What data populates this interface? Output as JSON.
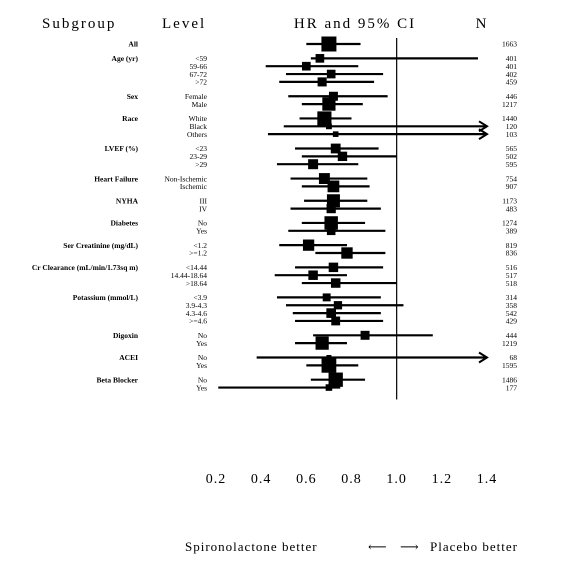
{
  "headers": {
    "subgroup": "Subgroup",
    "level": "Level",
    "estimate": "HR and 95% CI",
    "n": "N"
  },
  "footer": {
    "left": "Spironolactone better",
    "left_arrow": "⟵",
    "right_arrow": "⟶",
    "right": "Placebo better"
  },
  "chart_data": {
    "type": "forest",
    "xlim": [
      0.2,
      1.4
    ],
    "x_ticks": [
      "0.2",
      "0.4",
      "0.6",
      "0.8",
      "1.0",
      "1.2",
      "1.4"
    ],
    "reference_line": 1.0,
    "groups": [
      {
        "label": "All",
        "rows": [
          {
            "level": "",
            "hr": 0.7,
            "lo": 0.6,
            "hi": 0.84,
            "n": "1663",
            "weight": 1663
          }
        ]
      },
      {
        "label": "Age (yr)",
        "rows": [
          {
            "level": "<59",
            "hr": 0.66,
            "lo": 0.62,
            "hi": 1.36,
            "n": "401",
            "weight": 401
          },
          {
            "level": "59-66",
            "hr": 0.6,
            "lo": 0.42,
            "hi": 0.83,
            "n": "401",
            "weight": 401
          },
          {
            "level": "67-72",
            "hr": 0.71,
            "lo": 0.51,
            "hi": 0.94,
            "n": "402",
            "weight": 402
          },
          {
            "level": ">72",
            "hr": 0.67,
            "lo": 0.48,
            "hi": 0.9,
            "n": "459",
            "weight": 459
          }
        ]
      },
      {
        "label": "Sex",
        "rows": [
          {
            "level": "Female",
            "hr": 0.72,
            "lo": 0.52,
            "hi": 0.96,
            "n": "446",
            "weight": 446
          },
          {
            "level": "Male",
            "hr": 0.7,
            "lo": 0.58,
            "hi": 0.85,
            "n": "1217",
            "weight": 1217
          }
        ]
      },
      {
        "label": "Race",
        "rows": [
          {
            "level": "White",
            "hr": 0.68,
            "lo": 0.57,
            "hi": 0.8,
            "n": "1440",
            "weight": 1440
          },
          {
            "level": "Black",
            "hr": 0.7,
            "lo": 0.5,
            "hi": 1.4,
            "n": "120",
            "weight": 120,
            "arrow": true
          },
          {
            "level": "Others",
            "hr": 0.73,
            "lo": 0.43,
            "hi": 1.4,
            "n": "103",
            "weight": 103,
            "arrow": true
          }
        ]
      },
      {
        "label": "LVEF (%)",
        "rows": [
          {
            "level": "<23",
            "hr": 0.73,
            "lo": 0.55,
            "hi": 0.92,
            "n": "565",
            "weight": 565
          },
          {
            "level": "23-29",
            "hr": 0.76,
            "lo": 0.58,
            "hi": 1.0,
            "n": "502",
            "weight": 502
          },
          {
            "level": ">29",
            "hr": 0.63,
            "lo": 0.47,
            "hi": 0.83,
            "n": "595",
            "weight": 595
          }
        ]
      },
      {
        "label": "Heart Failure",
        "rows": [
          {
            "level": "Non-Ischemic",
            "hr": 0.68,
            "lo": 0.53,
            "hi": 0.87,
            "n": "754",
            "weight": 754
          },
          {
            "level": "Ischemic",
            "hr": 0.72,
            "lo": 0.58,
            "hi": 0.88,
            "n": "907",
            "weight": 907
          }
        ]
      },
      {
        "label": "NYHA",
        "rows": [
          {
            "level": "III",
            "hr": 0.72,
            "lo": 0.59,
            "hi": 0.87,
            "n": "1173",
            "weight": 1173
          },
          {
            "level": "IV",
            "hr": 0.71,
            "lo": 0.53,
            "hi": 0.93,
            "n": "483",
            "weight": 483
          }
        ]
      },
      {
        "label": "Diabetes",
        "rows": [
          {
            "level": "No",
            "hr": 0.71,
            "lo": 0.58,
            "hi": 0.86,
            "n": "1274",
            "weight": 1274
          },
          {
            "level": "Yes",
            "hr": 0.71,
            "lo": 0.52,
            "hi": 0.95,
            "n": "389",
            "weight": 389
          }
        ]
      },
      {
        "label": "Ser Creatinine (mg/dL)",
        "rows": [
          {
            "level": "<1.2",
            "hr": 0.61,
            "lo": 0.48,
            "hi": 0.78,
            "n": "819",
            "weight": 819
          },
          {
            "level": ">=1.2",
            "hr": 0.78,
            "lo": 0.64,
            "hi": 0.95,
            "n": "836",
            "weight": 836
          }
        ]
      },
      {
        "label": "Cr Clearance (mL/min/1.73sq m)",
        "rows": [
          {
            "level": "<14.44",
            "hr": 0.72,
            "lo": 0.55,
            "hi": 0.94,
            "n": "516",
            "weight": 516
          },
          {
            "level": "14.44-18.64",
            "hr": 0.63,
            "lo": 0.46,
            "hi": 0.78,
            "n": "517",
            "weight": 517
          },
          {
            "level": ">18.64",
            "hr": 0.73,
            "lo": 0.58,
            "hi": 1.0,
            "n": "518",
            "weight": 518
          }
        ]
      },
      {
        "label": "Potassium (mmol/L)",
        "rows": [
          {
            "level": "<3.9",
            "hr": 0.69,
            "lo": 0.47,
            "hi": 0.93,
            "n": "314",
            "weight": 314
          },
          {
            "level": "3.9-4.3",
            "hr": 0.74,
            "lo": 0.51,
            "hi": 1.03,
            "n": "358",
            "weight": 358
          },
          {
            "level": "4.3-4.6",
            "hr": 0.71,
            "lo": 0.54,
            "hi": 0.93,
            "n": "542",
            "weight": 542
          },
          {
            "level": ">=4.6",
            "hr": 0.73,
            "lo": 0.55,
            "hi": 0.94,
            "n": "429",
            "weight": 429
          }
        ]
      },
      {
        "label": "Digoxin",
        "rows": [
          {
            "level": "No",
            "hr": 0.86,
            "lo": 0.63,
            "hi": 1.16,
            "n": "444",
            "weight": 444
          },
          {
            "level": "Yes",
            "hr": 0.67,
            "lo": 0.55,
            "hi": 0.78,
            "n": "1219",
            "weight": 1219
          }
        ]
      },
      {
        "label": "ACEI",
        "rows": [
          {
            "level": "No",
            "hr": 0.7,
            "lo": 0.38,
            "hi": 1.4,
            "n": "68",
            "weight": 68,
            "arrow": true
          },
          {
            "level": "Yes",
            "hr": 0.7,
            "lo": 0.6,
            "hi": 0.83,
            "n": "1595",
            "weight": 1595
          }
        ]
      },
      {
        "label": "Beta Blocker",
        "rows": [
          {
            "level": "No",
            "hr": 0.73,
            "lo": 0.62,
            "hi": 0.86,
            "n": "1486",
            "weight": 1486
          },
          {
            "level": "Yes",
            "hr": 0.7,
            "lo": 0.21,
            "hi": 0.75,
            "n": "177",
            "weight": 177
          }
        ]
      }
    ]
  }
}
